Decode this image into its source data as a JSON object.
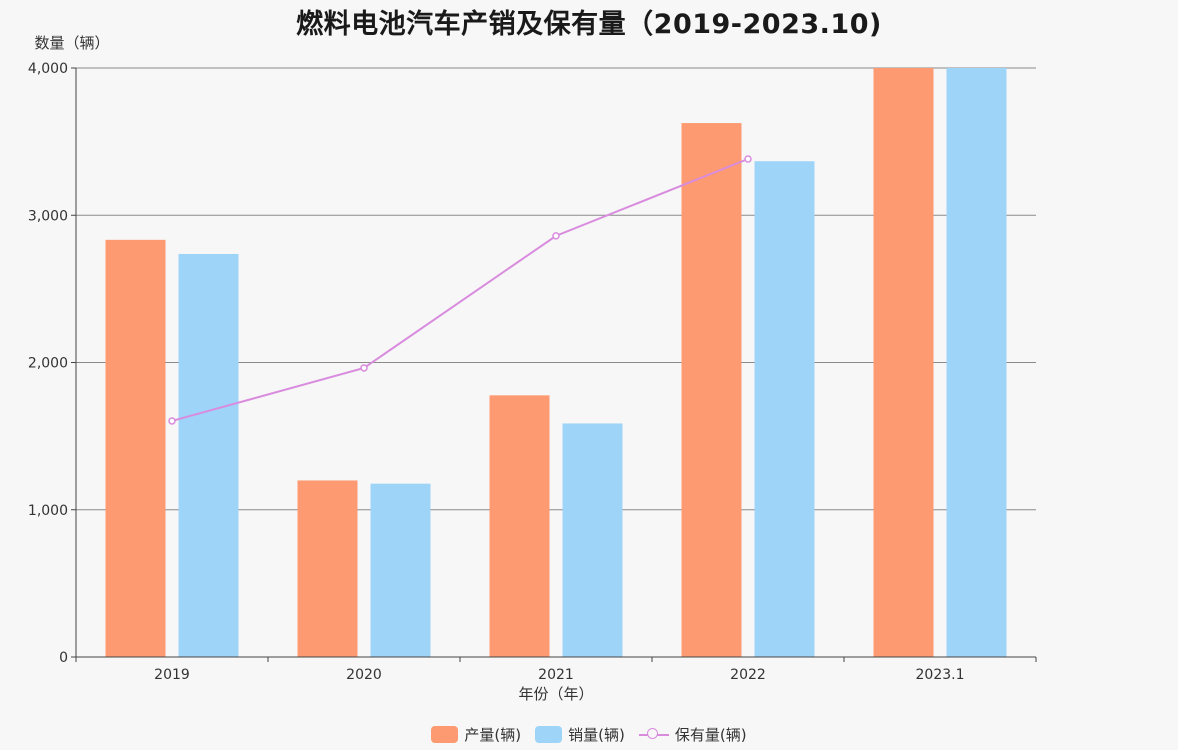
{
  "colors": {
    "production": "#fd9a71",
    "sales": "#9dd4f8",
    "stock": "#d98cde",
    "grid": "#8a8a8a",
    "axis": "#444444",
    "text": "#333333"
  },
  "chart_data": {
    "type": "bar",
    "title": "燃料电池汽车产销及保有量（2019-2023.10)",
    "ylabel": "数量（辆）",
    "xlabel": "年份（年）",
    "categories": [
      "2019",
      "2020",
      "2021",
      "2022",
      "2023.1"
    ],
    "ylim": [
      0,
      4000
    ],
    "yticks": [
      0,
      1000,
      2000,
      3000,
      4000
    ],
    "ytick_labels": [
      "0",
      "1,000",
      "2,000",
      "3,000",
      "4,000"
    ],
    "grid": true,
    "legend_position": "bottom-center",
    "series": [
      {
        "name": "产量(辆)",
        "type": "bar",
        "values": [
          2833,
          1199,
          1777,
          3626,
          4000
        ]
      },
      {
        "name": "销量(辆)",
        "type": "bar",
        "values": [
          2737,
          1177,
          1586,
          3367,
          4000
        ]
      },
      {
        "name": "保有量(辆)",
        "type": "line",
        "values": [
          1603,
          1963,
          2860,
          3382,
          null
        ]
      }
    ]
  }
}
